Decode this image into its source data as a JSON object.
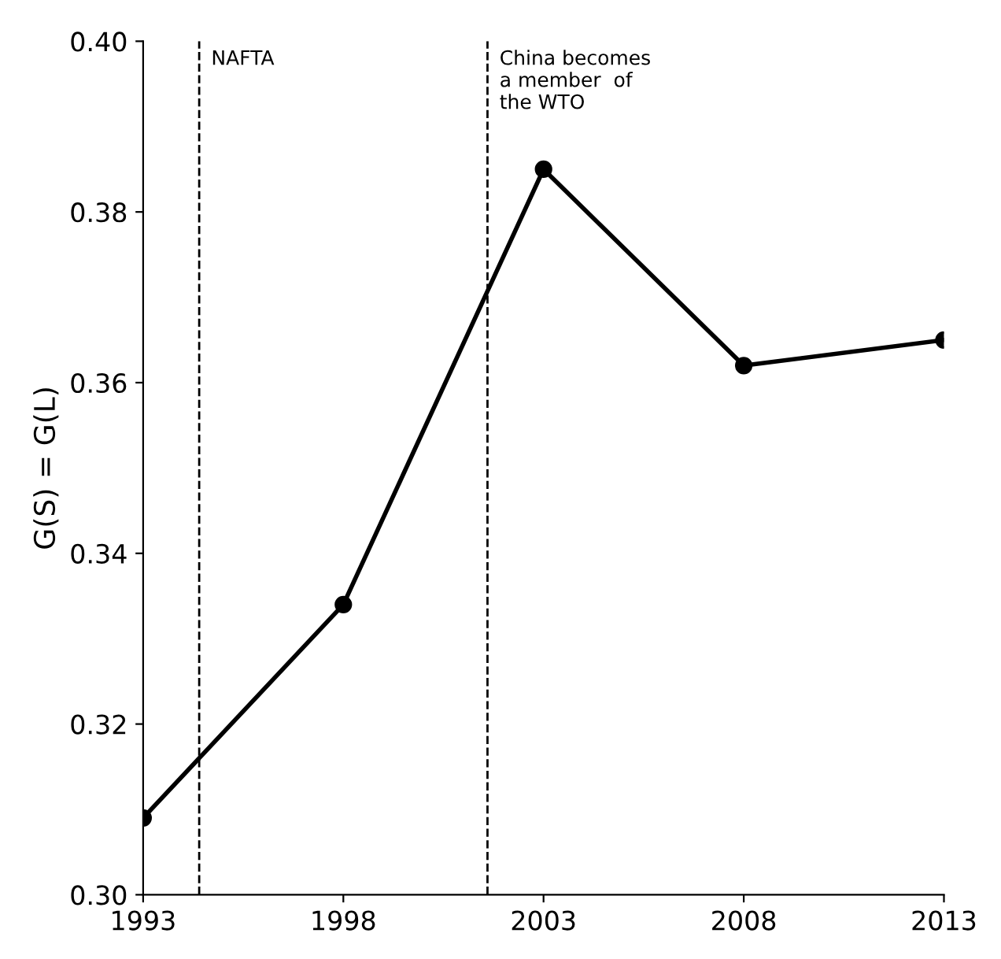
{
  "chart_data": {
    "type": "line",
    "ylabel": "G(S) = G(L)",
    "x": [
      1993,
      1998,
      2003,
      2008,
      2013
    ],
    "series": [
      {
        "color": "#000000",
        "values": [
          0.309,
          0.334,
          0.385,
          0.362,
          0.365
        ]
      }
    ],
    "xlim": [
      1993,
      2013
    ],
    "xticks": [
      1993,
      1998,
      2003,
      2008,
      2013
    ],
    "ylim": [
      0.3,
      0.4
    ],
    "yticks": [
      {
        "value": 0.3,
        "label": "0.30"
      },
      {
        "value": 0.32,
        "label": "0.32"
      },
      {
        "value": 0.34,
        "label": "0.34"
      },
      {
        "value": 0.36,
        "label": "0.36"
      },
      {
        "value": 0.38,
        "label": "0.38"
      },
      {
        "value": 0.4,
        "label": "0.40"
      }
    ],
    "ref_lines": [
      {
        "axis": "x",
        "value": 1994.4,
        "label": "NAFTA",
        "line_style": "dashed",
        "color": "#000000"
      },
      {
        "axis": "x",
        "value": 2001.6,
        "label": "China becomes\na member  of\nthe WTO",
        "line_style": "dashed",
        "color": "#000000"
      }
    ],
    "marker": "circle",
    "line_style": "solid"
  }
}
